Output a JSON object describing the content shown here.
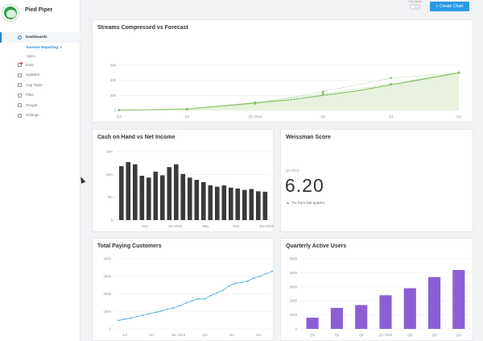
{
  "company": {
    "name": "Pied Piper"
  },
  "nav": {
    "items": [
      {
        "label": "Dashboards"
      },
      {
        "label": "Data"
      },
      {
        "label": "Updates"
      },
      {
        "label": "Cap Table"
      },
      {
        "label": "Files"
      },
      {
        "label": "People"
      },
      {
        "label": "Settings"
      }
    ],
    "sub_items": [
      {
        "label": "Investor Reporting",
        "ext": "↗"
      },
      {
        "label": "Sales"
      }
    ]
  },
  "topbar": {
    "edit_mode_label": "Edit Mode",
    "create_chart_label": "+ Create Chart"
  },
  "colors": {
    "green": "#7dbb5a",
    "green_fill": "#e8f2de",
    "bar_dark": "#3a3a3a",
    "blue": "#4aa7d8",
    "purple": "#8b5fd6",
    "accent": "#2a9ae3"
  },
  "charts": {
    "streams": {
      "title": "Streams Compressed vs Forecast",
      "chart_data": {
        "type": "area",
        "xlabel": "",
        "ylabel": "",
        "x_ticks": [
          "Q3",
          "Q4",
          "Q1 2016",
          "Q2",
          "Q3",
          "Q4"
        ],
        "y_ticks": [
          "0",
          "20k",
          "40k",
          "60k"
        ],
        "ylim": [
          0,
          60000
        ],
        "series": [
          {
            "x": [
              0,
              0.5,
              1,
              1.5,
              2,
              2.5,
              3,
              3.5,
              4,
              4.5,
              5
            ],
            "values": [
              500,
              1000,
              2000,
              6000,
              10000,
              14000,
              20000,
              26000,
              34000,
              42000,
              50000
            ]
          },
          {
            "x": [
              0,
              1,
              2,
              3,
              4,
              5
            ],
            "values": [
              800,
              1800,
              10500,
              22000,
              35000,
              50500
            ]
          },
          {
            "x": [
              0,
              1,
              2,
              3,
              4,
              5
            ],
            "values": [
              400,
              1400,
              9000,
              25000,
              43000,
              50000
            ]
          }
        ]
      }
    },
    "cash": {
      "title": "Cash on Hand vs Net Income",
      "chart_data": {
        "type": "bar",
        "y_ticks": [
          "0",
          "5m",
          "10m",
          "15m"
        ],
        "ylim": [
          0,
          15
        ],
        "x_ticks": [
          "Sep",
          "Jan 2015",
          "May",
          "Sep",
          "Jan 2016"
        ],
        "values": [
          11.8,
          12.7,
          12.2,
          9.7,
          9.3,
          10.6,
          9.8,
          11.6,
          12.2,
          10.1,
          9.3,
          8.8,
          8.3,
          7.6,
          7.3,
          7.6,
          7.1,
          6.9,
          6.6,
          6.8,
          6.3,
          6.2
        ]
      }
    },
    "weissman": {
      "title": "Weissman Score",
      "subtitle": "Q4 2015",
      "value": "6.20",
      "change_icon": "▲",
      "change_text": "7% from last quarter"
    },
    "customers": {
      "title": "Total Paying Customers",
      "chart_data": {
        "type": "line",
        "y_ticks": [
          "0",
          "1000",
          "2000",
          "3000",
          "4000"
        ],
        "ylim": [
          0,
          4000
        ],
        "x_ticks": [
          "Jul",
          "Oct",
          "Jan 2015",
          "Apr",
          "Jul",
          "Oct"
        ],
        "values": [
          480,
          560,
          620,
          700,
          780,
          860,
          940,
          1020,
          1120,
          1200,
          1320,
          1480,
          1600,
          1720,
          1700,
          1900,
          2050,
          2200,
          2450,
          2600,
          2650,
          2720,
          2900,
          3000,
          3150,
          3280
        ]
      }
    },
    "qau": {
      "title": "Quarterly Active Users",
      "chart_data": {
        "type": "bar",
        "y_ticks": [
          "0",
          "1000",
          "2000",
          "3000",
          "4000",
          "5000"
        ],
        "ylim": [
          0,
          5000
        ],
        "categories": [
          "Q2",
          "Q3",
          "Q4",
          "Q1 2015",
          "Q2",
          "Q3",
          "Q4"
        ],
        "values": [
          800,
          1500,
          1700,
          2400,
          2900,
          3700,
          4200
        ]
      }
    }
  }
}
